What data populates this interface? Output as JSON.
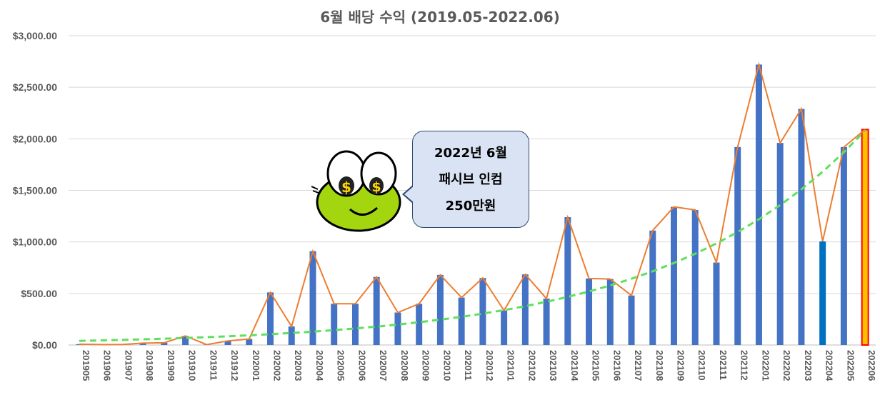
{
  "chart_data": {
    "type": "bar",
    "title": "6월 배당 수익 (2019.05-2022.06)",
    "categories": [
      "201905",
      "201906",
      "201907",
      "201908",
      "201909",
      "201910",
      "201911",
      "201912",
      "202001",
      "202002",
      "202003",
      "202004",
      "202005",
      "202006",
      "202007",
      "202008",
      "202009",
      "202010",
      "202011",
      "202012",
      "202101",
      "202102",
      "202103",
      "202104",
      "202105",
      "202106",
      "202107",
      "202108",
      "202109",
      "202110",
      "202111",
      "202112",
      "202201",
      "202202",
      "202203",
      "202204",
      "202205",
      "202206"
    ],
    "series": [
      {
        "type": "bar",
        "values": [
          8,
          4,
          4,
          18,
          22,
          88,
          4,
          40,
          58,
          510,
          180,
          910,
          400,
          400,
          660,
          315,
          400,
          680,
          460,
          650,
          335,
          685,
          450,
          1240,
          645,
          640,
          480,
          1110,
          1340,
          1310,
          800,
          1920,
          2720,
          1960,
          2290,
          1005,
          1920,
          2090
        ]
      },
      {
        "type": "line",
        "values": [
          8,
          4,
          4,
          18,
          22,
          88,
          4,
          40,
          58,
          510,
          180,
          910,
          400,
          400,
          660,
          315,
          400,
          680,
          460,
          650,
          335,
          685,
          450,
          1240,
          645,
          640,
          480,
          1110,
          1340,
          1310,
          800,
          1920,
          2720,
          1960,
          2290,
          1005,
          1920,
          2090
        ]
      }
    ],
    "trendline": {
      "type": "exponential",
      "start": 40,
      "end": 2080
    },
    "ylim": [
      0,
      3000
    ],
    "yticks": [
      "$0.00",
      "$500.00",
      "$1,000.00",
      "$1,500.00",
      "$2,000.00",
      "$2,500.00",
      "$3,000.00"
    ],
    "grid": true,
    "highlights": {
      "202204": "#0070c0",
      "202206": "#ffc000"
    },
    "colors": {
      "bar": "#4472c4",
      "line": "#ed7d31",
      "trend": "#5ee05e",
      "highlight_outline": "#ff0000"
    }
  },
  "callout": {
    "lines": [
      "2022년 6월",
      "패시브 인컴",
      "250만원"
    ]
  }
}
